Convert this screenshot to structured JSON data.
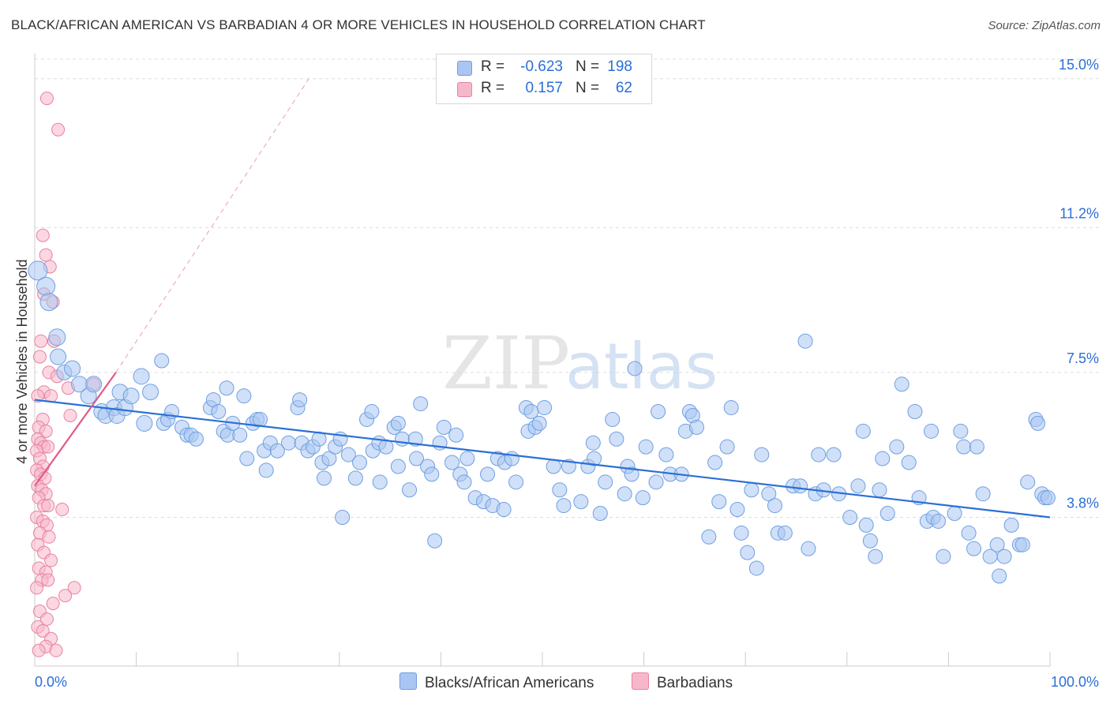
{
  "title": "BLACK/AFRICAN AMERICAN VS BARBADIAN 4 OR MORE VEHICLES IN HOUSEHOLD CORRELATION CHART",
  "source": "Source: ZipAtlas.com",
  "watermark": {
    "zip": "ZIP",
    "atlas": "atlas"
  },
  "legend": {
    "r_label": "R =",
    "n_label": "N =",
    "rows": [
      {
        "r": "-0.623",
        "n": "198"
      },
      {
        "r": "0.157",
        "n": "62"
      }
    ]
  },
  "bottom_legend": [
    "Blacks/African Americans",
    "Barbadians"
  ],
  "colors": {
    "blue_fill": "#a9c6f2",
    "blue_stroke": "#6f9fe0",
    "blue_line": "#2a6fd6",
    "pink_fill": "#f7b7cb",
    "pink_stroke": "#e8829f",
    "pink_line": "#e05a86",
    "tick_text": "#2a6fd6",
    "grid": "#dddddd"
  },
  "chart_data": {
    "type": "scatter",
    "title": "BLACK/AFRICAN AMERICAN VS BARBADIAN 4 OR MORE VEHICLES IN HOUSEHOLD CORRELATION CHART",
    "xlabel": "",
    "ylabel": "4 or more Vehicles in Household",
    "xlim": [
      0,
      100
    ],
    "ylim": [
      0,
      15.5
    ],
    "x_tick_labels": [
      "0.0%",
      "100.0%"
    ],
    "y_ticks": [
      3.8,
      7.5,
      11.2,
      15.0
    ],
    "y_tick_labels": [
      "3.8%",
      "7.5%",
      "11.2%",
      "15.0%"
    ],
    "series": [
      {
        "name": "Blacks/African Americans",
        "color": "blue",
        "r": -0.623,
        "n": 198,
        "trend": {
          "x": [
            0,
            100
          ],
          "y": [
            6.8,
            3.8
          ]
        },
        "points": [
          [
            0.3,
            10.1
          ],
          [
            1.1,
            9.7
          ],
          [
            1.4,
            9.3
          ],
          [
            2.2,
            8.4
          ],
          [
            2.3,
            7.9
          ],
          [
            2.9,
            7.5
          ],
          [
            3.7,
            7.6
          ],
          [
            4.4,
            7.2
          ],
          [
            5.3,
            6.9
          ],
          [
            5.8,
            7.2
          ],
          [
            6.6,
            6.5
          ],
          [
            7.0,
            6.4
          ],
          [
            7.8,
            6.6
          ],
          [
            8.1,
            6.4
          ],
          [
            8.4,
            7.0
          ],
          [
            8.9,
            6.6
          ],
          [
            9.5,
            6.9
          ],
          [
            10.5,
            7.4
          ],
          [
            10.8,
            6.2
          ],
          [
            11.4,
            7.0
          ],
          [
            12.5,
            7.8
          ],
          [
            12.7,
            6.2
          ],
          [
            13.1,
            6.3
          ],
          [
            13.5,
            6.5
          ],
          [
            14.5,
            6.1
          ],
          [
            15.0,
            5.9
          ],
          [
            15.4,
            5.9
          ],
          [
            15.9,
            5.8
          ],
          [
            17.3,
            6.6
          ],
          [
            17.6,
            6.8
          ],
          [
            18.1,
            6.5
          ],
          [
            18.6,
            6.0
          ],
          [
            18.9,
            7.1
          ],
          [
            19.0,
            5.9
          ],
          [
            19.5,
            6.2
          ],
          [
            20.2,
            5.9
          ],
          [
            20.6,
            6.9
          ],
          [
            20.9,
            5.3
          ],
          [
            21.5,
            6.2
          ],
          [
            21.9,
            6.3
          ],
          [
            22.2,
            6.3
          ],
          [
            22.6,
            5.5
          ],
          [
            22.8,
            5.0
          ],
          [
            23.2,
            5.7
          ],
          [
            23.9,
            5.5
          ],
          [
            25.0,
            5.7
          ],
          [
            25.9,
            6.6
          ],
          [
            26.1,
            6.8
          ],
          [
            26.3,
            5.7
          ],
          [
            26.9,
            5.5
          ],
          [
            27.4,
            5.6
          ],
          [
            28.0,
            5.8
          ],
          [
            28.3,
            5.2
          ],
          [
            28.5,
            4.8
          ],
          [
            29.0,
            5.3
          ],
          [
            29.6,
            5.6
          ],
          [
            30.1,
            5.8
          ],
          [
            30.3,
            3.8
          ],
          [
            30.9,
            5.4
          ],
          [
            31.6,
            4.8
          ],
          [
            32.0,
            5.2
          ],
          [
            32.7,
            6.3
          ],
          [
            33.2,
            6.5
          ],
          [
            33.3,
            5.5
          ],
          [
            33.9,
            5.7
          ],
          [
            34.0,
            4.7
          ],
          [
            34.6,
            5.6
          ],
          [
            35.4,
            6.1
          ],
          [
            35.8,
            6.2
          ],
          [
            35.8,
            5.1
          ],
          [
            36.2,
            5.8
          ],
          [
            36.9,
            4.5
          ],
          [
            37.5,
            5.8
          ],
          [
            37.6,
            5.3
          ],
          [
            38.0,
            6.7
          ],
          [
            38.7,
            5.1
          ],
          [
            39.1,
            4.9
          ],
          [
            39.4,
            3.2
          ],
          [
            39.9,
            5.7
          ],
          [
            40.3,
            6.1
          ],
          [
            41.1,
            5.2
          ],
          [
            41.5,
            5.9
          ],
          [
            41.9,
            4.9
          ],
          [
            42.3,
            4.7
          ],
          [
            42.6,
            5.3
          ],
          [
            43.4,
            4.3
          ],
          [
            44.2,
            4.2
          ],
          [
            44.6,
            4.9
          ],
          [
            45.1,
            4.1
          ],
          [
            45.6,
            5.3
          ],
          [
            46.2,
            4.0
          ],
          [
            46.3,
            5.2
          ],
          [
            47.0,
            5.3
          ],
          [
            47.4,
            4.7
          ],
          [
            48.4,
            6.6
          ],
          [
            48.6,
            6.0
          ],
          [
            48.9,
            6.5
          ],
          [
            49.3,
            6.1
          ],
          [
            49.7,
            6.2
          ],
          [
            50.2,
            6.6
          ],
          [
            51.1,
            5.1
          ],
          [
            51.7,
            4.5
          ],
          [
            52.1,
            4.1
          ],
          [
            52.6,
            5.1
          ],
          [
            53.8,
            4.2
          ],
          [
            54.5,
            5.1
          ],
          [
            55.0,
            5.7
          ],
          [
            55.1,
            5.3
          ],
          [
            55.7,
            3.9
          ],
          [
            56.2,
            4.7
          ],
          [
            56.9,
            6.3
          ],
          [
            57.3,
            5.8
          ],
          [
            58.1,
            4.4
          ],
          [
            58.4,
            5.1
          ],
          [
            58.8,
            4.9
          ],
          [
            59.1,
            7.6
          ],
          [
            59.9,
            4.3
          ],
          [
            60.2,
            5.6
          ],
          [
            61.2,
            4.7
          ],
          [
            61.4,
            6.5
          ],
          [
            62.2,
            5.4
          ],
          [
            62.6,
            4.9
          ],
          [
            63.7,
            4.9
          ],
          [
            64.1,
            6.0
          ],
          [
            64.5,
            6.5
          ],
          [
            64.8,
            6.4
          ],
          [
            65.2,
            6.1
          ],
          [
            66.4,
            3.3
          ],
          [
            67.0,
            5.2
          ],
          [
            67.4,
            4.2
          ],
          [
            68.2,
            5.6
          ],
          [
            68.6,
            6.6
          ],
          [
            69.2,
            4.0
          ],
          [
            69.6,
            3.4
          ],
          [
            70.2,
            2.9
          ],
          [
            70.6,
            4.5
          ],
          [
            71.1,
            2.5
          ],
          [
            71.6,
            5.4
          ],
          [
            72.3,
            4.4
          ],
          [
            72.9,
            4.1
          ],
          [
            73.2,
            3.4
          ],
          [
            73.9,
            3.4
          ],
          [
            74.7,
            4.6
          ],
          [
            75.4,
            4.6
          ],
          [
            75.9,
            8.3
          ],
          [
            76.2,
            3.0
          ],
          [
            76.9,
            4.4
          ],
          [
            77.2,
            5.4
          ],
          [
            77.7,
            4.5
          ],
          [
            78.7,
            5.4
          ],
          [
            79.2,
            4.4
          ],
          [
            80.3,
            3.8
          ],
          [
            81.1,
            4.6
          ],
          [
            81.6,
            6.0
          ],
          [
            81.9,
            3.6
          ],
          [
            82.3,
            3.2
          ],
          [
            82.8,
            2.8
          ],
          [
            83.2,
            4.5
          ],
          [
            83.5,
            5.3
          ],
          [
            84.0,
            3.9
          ],
          [
            84.9,
            5.6
          ],
          [
            85.4,
            7.2
          ],
          [
            86.1,
            5.2
          ],
          [
            86.7,
            6.5
          ],
          [
            87.1,
            4.3
          ],
          [
            87.9,
            3.7
          ],
          [
            88.3,
            6.0
          ],
          [
            88.5,
            3.8
          ],
          [
            89.0,
            3.7
          ],
          [
            89.5,
            2.8
          ],
          [
            90.6,
            3.9
          ],
          [
            91.2,
            6.0
          ],
          [
            91.5,
            5.6
          ],
          [
            92.0,
            3.4
          ],
          [
            92.5,
            3.0
          ],
          [
            92.8,
            5.6
          ],
          [
            93.4,
            4.4
          ],
          [
            94.1,
            2.8
          ],
          [
            94.8,
            3.1
          ],
          [
            95.0,
            2.3
          ],
          [
            95.5,
            2.8
          ],
          [
            96.2,
            3.6
          ],
          [
            97.0,
            3.1
          ],
          [
            97.3,
            3.1
          ],
          [
            97.8,
            4.7
          ],
          [
            98.6,
            6.3
          ],
          [
            98.8,
            6.2
          ],
          [
            99.2,
            4.4
          ],
          [
            99.5,
            4.3
          ],
          [
            99.8,
            4.3
          ]
        ]
      },
      {
        "name": "Barbadians",
        "color": "pink",
        "r": 0.157,
        "n": 62,
        "trend": {
          "x": [
            0,
            8.0
          ],
          "y": [
            4.6,
            7.5
          ]
        },
        "trend_dashed": {
          "x": [
            8.0,
            27.0
          ],
          "y": [
            7.5,
            15.0
          ]
        },
        "points": [
          [
            1.2,
            14.5
          ],
          [
            2.3,
            13.7
          ],
          [
            0.8,
            11.0
          ],
          [
            1.1,
            10.5
          ],
          [
            1.5,
            10.2
          ],
          [
            0.9,
            9.5
          ],
          [
            1.8,
            9.3
          ],
          [
            0.6,
            8.3
          ],
          [
            1.9,
            8.3
          ],
          [
            0.5,
            7.9
          ],
          [
            1.4,
            7.5
          ],
          [
            2.2,
            7.4
          ],
          [
            0.9,
            7.0
          ],
          [
            1.6,
            6.9
          ],
          [
            0.3,
            6.9
          ],
          [
            0.8,
            6.3
          ],
          [
            0.4,
            6.1
          ],
          [
            1.1,
            6.0
          ],
          [
            0.3,
            5.8
          ],
          [
            0.6,
            5.7
          ],
          [
            0.9,
            5.6
          ],
          [
            1.3,
            5.6
          ],
          [
            0.2,
            5.5
          ],
          [
            0.5,
            5.3
          ],
          [
            0.8,
            5.1
          ],
          [
            0.2,
            5.0
          ],
          [
            0.6,
            4.9
          ],
          [
            1.0,
            4.8
          ],
          [
            0.3,
            4.6
          ],
          [
            0.7,
            4.5
          ],
          [
            1.1,
            4.4
          ],
          [
            0.4,
            4.3
          ],
          [
            0.9,
            4.1
          ],
          [
            1.3,
            4.1
          ],
          [
            2.7,
            4.0
          ],
          [
            0.2,
            3.8
          ],
          [
            0.8,
            3.7
          ],
          [
            1.2,
            3.6
          ],
          [
            0.5,
            3.4
          ],
          [
            1.4,
            3.3
          ],
          [
            0.3,
            3.1
          ],
          [
            0.9,
            2.9
          ],
          [
            1.6,
            2.7
          ],
          [
            0.4,
            2.5
          ],
          [
            1.1,
            2.4
          ],
          [
            0.7,
            2.2
          ],
          [
            1.3,
            2.2
          ],
          [
            0.2,
            2.0
          ],
          [
            3.9,
            2.0
          ],
          [
            3.0,
            1.8
          ],
          [
            1.8,
            1.6
          ],
          [
            0.5,
            1.4
          ],
          [
            1.2,
            1.2
          ],
          [
            0.3,
            1.0
          ],
          [
            0.8,
            0.9
          ],
          [
            1.6,
            0.7
          ],
          [
            1.1,
            0.5
          ],
          [
            0.4,
            0.4
          ],
          [
            2.1,
            0.4
          ],
          [
            3.3,
            7.1
          ],
          [
            3.5,
            6.4
          ],
          [
            5.8,
            7.2
          ]
        ]
      }
    ]
  }
}
